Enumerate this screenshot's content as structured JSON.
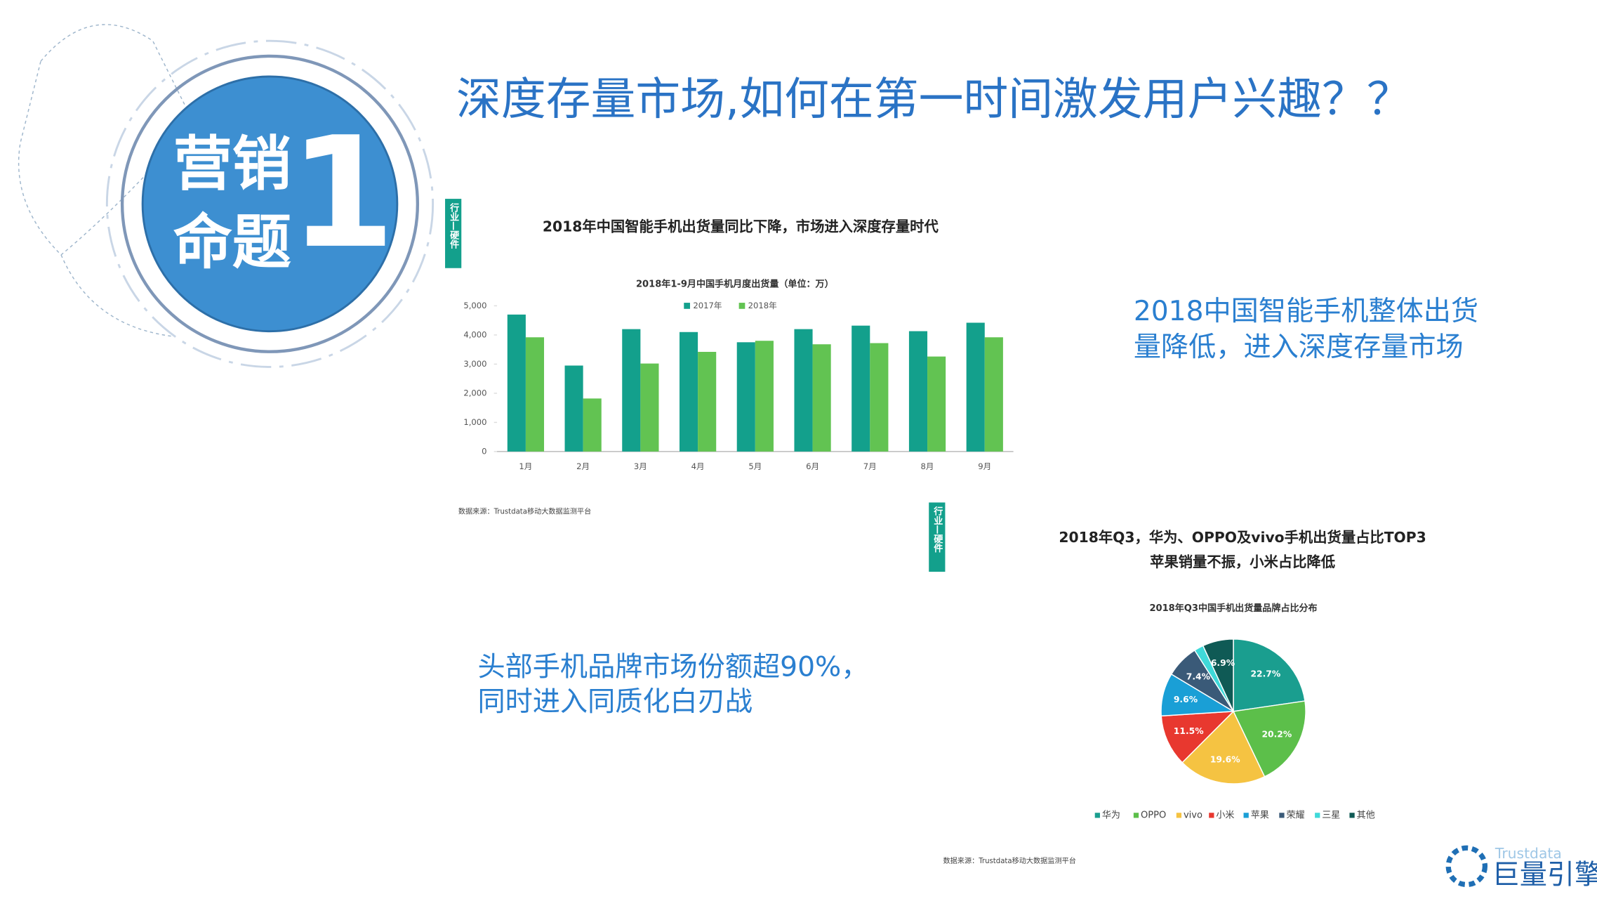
{
  "slide": {
    "title": "深度存量市场,如何在第一时间激发用户兴趣？？",
    "badge": {
      "line1": "营销",
      "line2": "命题",
      "number": "1"
    },
    "callouts": [
      [
        "2018中国智能手机整体出货",
        "量降低，进入深度存量市场"
      ],
      [
        "头部手机品牌市场份额超90%，",
        "同时进入同质化白刃战"
      ]
    ],
    "logo": {
      "name": "巨量引擎",
      "partner": "Trustdata"
    }
  },
  "chart_data": [
    {
      "type": "bar",
      "tag": "行业—硬件",
      "heading": [
        "2018年中国智能手机出货量同比下降，市场进入深度存量时代"
      ],
      "title": "2018年1-9月中国手机月度出货量（单位：万）",
      "source": "数据来源：Trustdata移动大数据监测平台",
      "categories": [
        "1月",
        "2月",
        "3月",
        "4月",
        "5月",
        "6月",
        "7月",
        "8月",
        "9月"
      ],
      "series": [
        {
          "name": "2017年",
          "color": "#13a08c",
          "values": [
            4700,
            2950,
            4200,
            4100,
            3750,
            4200,
            4320,
            4130,
            4420
          ]
        },
        {
          "name": "2018年",
          "color": "#62c352",
          "values": [
            3920,
            1820,
            3020,
            3420,
            3800,
            3680,
            3720,
            3260,
            3920
          ]
        }
      ],
      "ylim": [
        0,
        5000
      ],
      "yticks": [
        0,
        {
          "value": 1000,
          "label": "1,000"
        },
        {
          "value": 2000,
          "label": "2,000"
        },
        {
          "value": 3000,
          "label": "3,000"
        },
        {
          "value": 4000,
          "label": "4,000"
        },
        {
          "value": 5000,
          "label": "5,000"
        }
      ],
      "grid": false,
      "legend": "top"
    },
    {
      "type": "pie",
      "tag": "行业—硬件",
      "heading": [
        "2018年Q3，华为、OPPO及vivo手机出货量占比TOP3",
        "苹果销量不振，小米占比降低"
      ],
      "title": "2018年Q3中国手机出货量品牌占比分布",
      "source": "数据来源：Trustdata移动大数据监测平台",
      "categories": [
        "华为",
        "OPPO",
        "vivo",
        "小米",
        "苹果",
        "荣耀",
        "三星",
        "其他"
      ],
      "values": [
        22.7,
        20.2,
        19.6,
        11.5,
        9.6,
        7.4,
        2.1,
        6.9
      ],
      "value_labels": [
        "22.7%",
        "20.2%",
        "19.6%",
        "11.5%",
        "9.6%",
        "7.4%",
        null,
        "6.9%"
      ],
      "colors": [
        "#1a9e8f",
        "#5cbf4a",
        "#f5c342",
        "#e8382f",
        "#1a9fd6",
        "#3a5a78",
        "#3fd9d9",
        "#0f5a55"
      ],
      "legend": "bottom"
    }
  ]
}
